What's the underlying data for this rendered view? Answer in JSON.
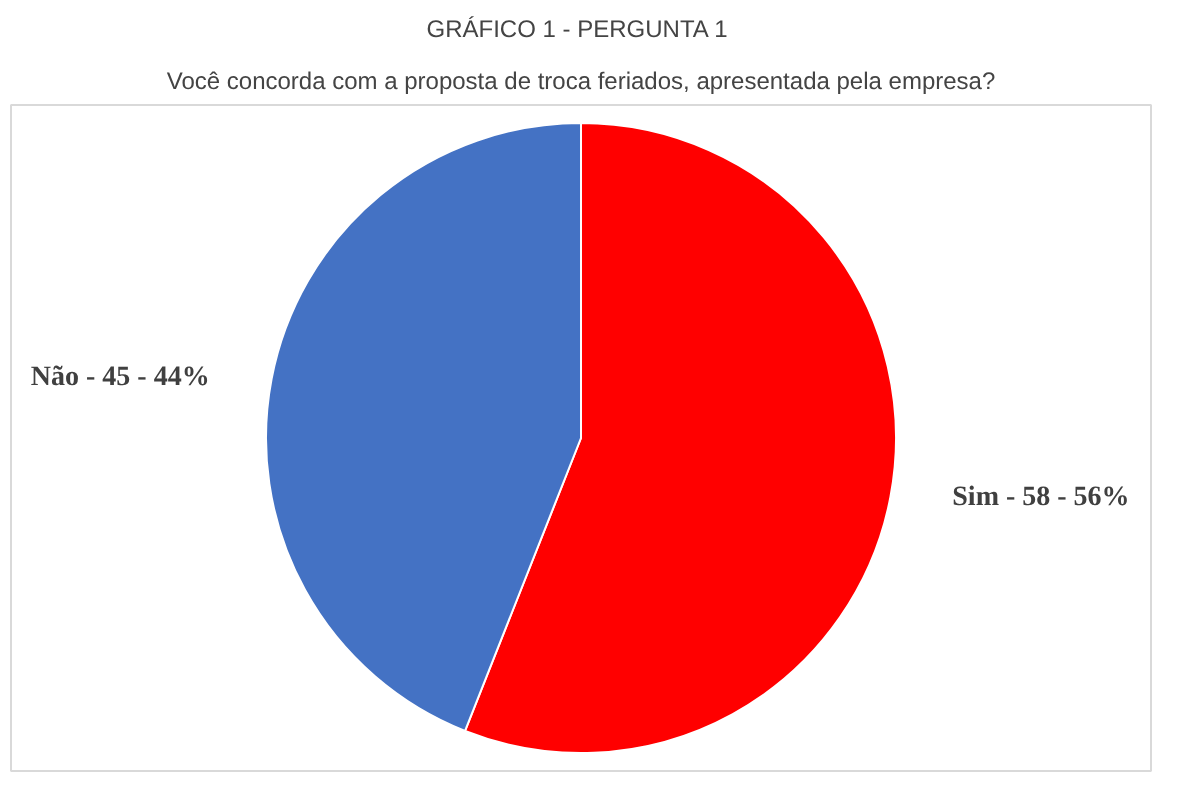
{
  "chart_data": {
    "type": "pie",
    "title": "GRÁFICO 1  - PERGUNTA 1",
    "subtitle": "Você concorda com a proposta de troca feriados, apresentada pela empresa?",
    "categories": [
      "Sim -  58  - 56%",
      "Não - 45 - 44%"
    ],
    "values": [
      56,
      44
    ],
    "colors": [
      "#ff0000",
      "#4472c4"
    ]
  }
}
